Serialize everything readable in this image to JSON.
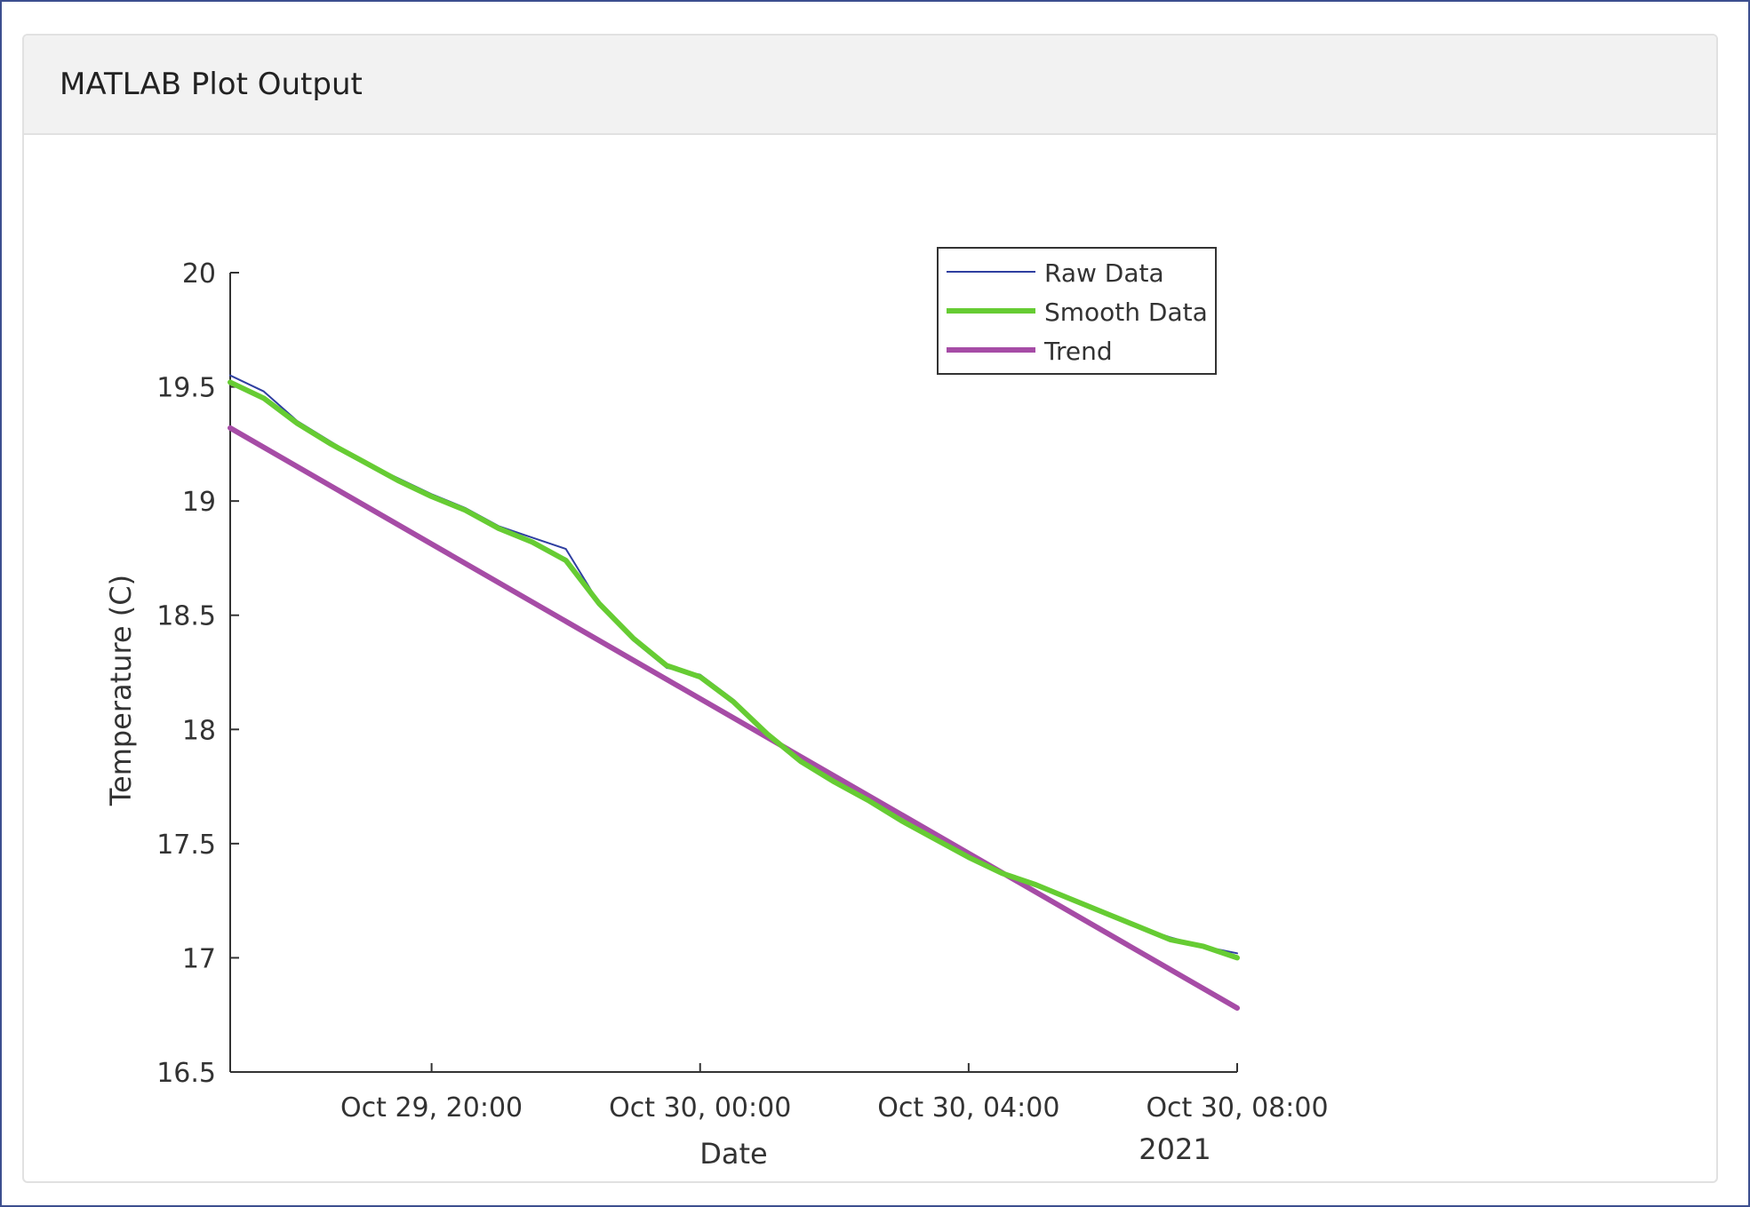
{
  "panel": {
    "title": "MATLAB Plot Output"
  },
  "chart_data": {
    "type": "line",
    "xlabel": "Date",
    "x_secondary_label": "2021",
    "ylabel": "Temperature (C)",
    "xlim": [
      "2021-10-29T17:00",
      "2021-10-30T08:00"
    ],
    "ylim": [
      16.5,
      20
    ],
    "yticks": [
      16.5,
      17,
      17.5,
      18,
      18.5,
      19,
      19.5,
      20
    ],
    "ytick_labels": [
      "16.5",
      "17",
      "17.5",
      "18",
      "18.5",
      "19",
      "19.5",
      "20"
    ],
    "xticks": [
      "2021-10-29T20:00",
      "2021-10-30T00:00",
      "2021-10-30T04:00",
      "2021-10-30T08:00"
    ],
    "xtick_labels": [
      "Oct 29, 20:00",
      "Oct 30, 00:00",
      "Oct 30, 04:00",
      "Oct 30, 08:00"
    ],
    "grid": false,
    "legend_position": "top-right",
    "series": [
      {
        "name": "Raw Data",
        "color": "#2f3fa0",
        "x": [
          "2021-10-29T17:00",
          "2021-10-29T17:30",
          "2021-10-29T18:00",
          "2021-10-29T18:30",
          "2021-10-29T19:00",
          "2021-10-29T19:30",
          "2021-10-29T20:00",
          "2021-10-29T20:30",
          "2021-10-29T21:00",
          "2021-10-29T21:30",
          "2021-10-29T22:00",
          "2021-10-29T22:30",
          "2021-10-29T23:00",
          "2021-10-29T23:30",
          "2021-10-30T00:00",
          "2021-10-30T00:30",
          "2021-10-30T01:00",
          "2021-10-30T01:30",
          "2021-10-30T02:00",
          "2021-10-30T02:30",
          "2021-10-30T03:00",
          "2021-10-30T03:30",
          "2021-10-30T04:00",
          "2021-10-30T04:30",
          "2021-10-30T05:00",
          "2021-10-30T05:30",
          "2021-10-30T06:00",
          "2021-10-30T06:30",
          "2021-10-30T07:00",
          "2021-10-30T07:30",
          "2021-10-30T08:00"
        ],
        "values": [
          19.55,
          19.48,
          19.35,
          19.26,
          19.17,
          19.1,
          19.03,
          18.97,
          18.89,
          18.84,
          18.79,
          18.55,
          18.39,
          18.27,
          18.24,
          18.13,
          17.98,
          17.86,
          17.77,
          17.69,
          17.6,
          17.52,
          17.44,
          17.37,
          17.32,
          17.26,
          17.2,
          17.14,
          17.09,
          17.05,
          17.02
        ]
      },
      {
        "name": "Smooth Data",
        "color": "#66cc33",
        "x": [
          "2021-10-29T17:00",
          "2021-10-29T17:30",
          "2021-10-29T18:00",
          "2021-10-29T18:30",
          "2021-10-29T19:00",
          "2021-10-29T19:30",
          "2021-10-29T20:00",
          "2021-10-29T20:30",
          "2021-10-29T21:00",
          "2021-10-29T21:30",
          "2021-10-29T22:00",
          "2021-10-29T22:30",
          "2021-10-29T23:00",
          "2021-10-29T23:30",
          "2021-10-30T00:00",
          "2021-10-30T00:30",
          "2021-10-30T01:00",
          "2021-10-30T01:30",
          "2021-10-30T02:00",
          "2021-10-30T02:30",
          "2021-10-30T03:00",
          "2021-10-30T03:30",
          "2021-10-30T04:00",
          "2021-10-30T04:30",
          "2021-10-30T05:00",
          "2021-10-30T05:30",
          "2021-10-30T06:00",
          "2021-10-30T06:30",
          "2021-10-30T07:00",
          "2021-10-30T07:30",
          "2021-10-30T08:00"
        ],
        "values": [
          19.52,
          19.45,
          19.34,
          19.25,
          19.17,
          19.09,
          19.02,
          18.96,
          18.88,
          18.82,
          18.74,
          18.55,
          18.4,
          18.28,
          18.23,
          18.12,
          17.98,
          17.86,
          17.77,
          17.69,
          17.6,
          17.52,
          17.44,
          17.37,
          17.32,
          17.26,
          17.2,
          17.14,
          17.08,
          17.05,
          17.0
        ]
      },
      {
        "name": "Trend",
        "color": "#a64ca6",
        "x": [
          "2021-10-29T17:00",
          "2021-10-30T08:00"
        ],
        "values": [
          19.32,
          16.78
        ]
      }
    ]
  }
}
